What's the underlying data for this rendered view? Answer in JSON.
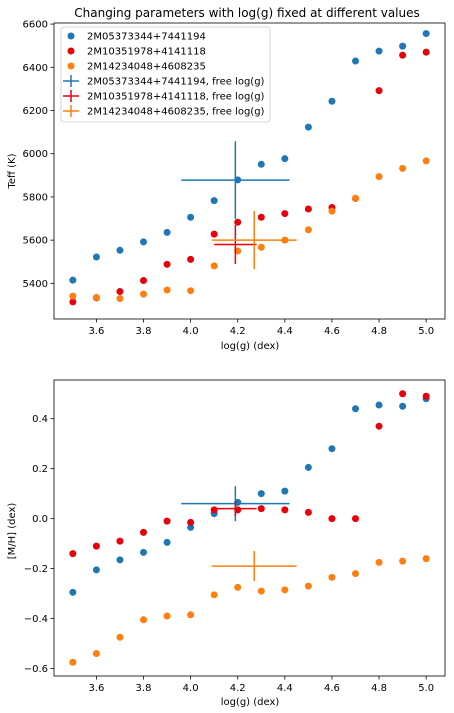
{
  "colors": {
    "blue": "#1f77b4",
    "red": "#e8000b",
    "orange": "#ff7f0e"
  },
  "chart_data": [
    {
      "type": "scatter",
      "title": "Changing parameters with log(g) fixed at different values",
      "xlabel": "log(g) (dex)",
      "ylabel": "Teff (K)",
      "xlim": [
        3.42,
        5.08
      ],
      "ylim": [
        5235,
        6605
      ],
      "xticks": [
        3.6,
        3.8,
        4.0,
        4.2,
        4.4,
        4.6,
        4.8,
        5.0
      ],
      "yticks": [
        5400,
        5600,
        5800,
        6000,
        6200,
        6400,
        6600
      ],
      "xtick_labels": [
        "3.6",
        "3.8",
        "4.0",
        "4.2",
        "4.4",
        "4.6",
        "4.8",
        "5.0"
      ],
      "ytick_labels": [
        "5400",
        "5600",
        "5800",
        "6000",
        "6200",
        "6400",
        "6600"
      ],
      "legend_position": "top-left",
      "series": [
        {
          "name": "2M05373344+7441194",
          "color": "blue",
          "x": [
            3.5,
            3.6,
            3.7,
            3.8,
            3.9,
            4.0,
            4.1,
            4.2,
            4.3,
            4.4,
            4.5,
            4.6,
            4.7,
            4.8,
            4.9,
            5.0
          ],
          "y": [
            5415,
            5522,
            5553,
            5592,
            5636,
            5706,
            5783,
            5879,
            5951,
            5977,
            6123,
            6243,
            6429,
            6475,
            6498,
            6556
          ]
        },
        {
          "name": "2M10351978+4141118",
          "color": "red",
          "x": [
            3.5,
            3.6,
            3.7,
            3.8,
            3.9,
            4.0,
            4.1,
            4.2,
            4.3,
            4.4,
            4.5,
            4.6,
            4.7,
            4.8,
            4.9,
            5.0
          ],
          "y": [
            5314,
            5333,
            5362,
            5413,
            5488,
            5511,
            5628,
            5683,
            5706,
            5723,
            5744,
            5751,
            5793,
            6292,
            6456,
            6470
          ]
        },
        {
          "name": "2M14234048+4608235",
          "color": "orange",
          "x": [
            3.5,
            3.6,
            3.7,
            3.8,
            3.9,
            4.0,
            4.1,
            4.2,
            4.3,
            4.4,
            4.5,
            4.6,
            4.7,
            4.8,
            4.9,
            5.0
          ],
          "y": [
            5341,
            5335,
            5330,
            5350,
            5369,
            5366,
            5481,
            5550,
            5567,
            5600,
            5648,
            5734,
            5794,
            5894,
            5932,
            5967
          ]
        }
      ],
      "errorbars": [
        {
          "name": "2M05373344+7441194, free log(g)",
          "color": "blue",
          "x": 4.19,
          "y": 5878,
          "xerr": 0.23,
          "yerr": 180
        },
        {
          "name": "2M10351978+4141118, free log(g)",
          "color": "red",
          "x": 4.19,
          "y": 5580,
          "xerr": 0.09,
          "yerr": 90
        },
        {
          "name": "2M14234048+4608235, free log(g)",
          "color": "orange",
          "x": 4.27,
          "y": 5600,
          "xerr": 0.18,
          "yerr": 135
        }
      ]
    },
    {
      "type": "scatter",
      "title": "",
      "xlabel": "log(g) (dex)",
      "ylabel": "[M/H] (dex)",
      "xlim": [
        3.42,
        5.08
      ],
      "ylim": [
        -0.63,
        0.555
      ],
      "xticks": [
        3.6,
        3.8,
        4.0,
        4.2,
        4.4,
        4.6,
        4.8,
        5.0
      ],
      "yticks": [
        -0.6,
        -0.4,
        -0.2,
        0.0,
        0.2,
        0.4
      ],
      "xtick_labels": [
        "3.6",
        "3.8",
        "4.0",
        "4.2",
        "4.4",
        "4.6",
        "4.8",
        "5.0"
      ],
      "ytick_labels": [
        "−0.6",
        "−0.4",
        "−0.2",
        "0.0",
        "0.2",
        "0.4"
      ],
      "series": [
        {
          "name": "2M05373344+7441194",
          "color": "blue",
          "x": [
            3.5,
            3.6,
            3.7,
            3.8,
            3.9,
            4.0,
            4.1,
            4.2,
            4.3,
            4.4,
            4.5,
            4.6,
            4.7,
            4.8,
            4.9,
            5.0
          ],
          "y": [
            -0.295,
            -0.205,
            -0.165,
            -0.135,
            -0.095,
            -0.035,
            0.02,
            0.065,
            0.1,
            0.11,
            0.205,
            0.28,
            0.44,
            0.455,
            0.45,
            0.48
          ]
        },
        {
          "name": "2M10351978+4141118",
          "color": "red",
          "x": [
            3.5,
            3.6,
            3.7,
            3.8,
            3.9,
            4.0,
            4.1,
            4.2,
            4.3,
            4.4,
            4.5,
            4.6,
            4.7,
            4.8,
            4.9,
            5.0
          ],
          "y": [
            -0.14,
            -0.11,
            -0.09,
            -0.055,
            -0.01,
            -0.015,
            0.035,
            0.035,
            0.04,
            0.035,
            0.025,
            0.0,
            0.0,
            0.37,
            0.5,
            0.49
          ]
        },
        {
          "name": "2M14234048+4608235",
          "color": "orange",
          "x": [
            3.5,
            3.6,
            3.7,
            3.8,
            3.9,
            4.0,
            4.1,
            4.2,
            4.3,
            4.4,
            4.5,
            4.6,
            4.7,
            4.8,
            4.9,
            5.0
          ],
          "y": [
            -0.575,
            -0.54,
            -0.475,
            -0.405,
            -0.39,
            -0.385,
            -0.305,
            -0.275,
            -0.29,
            -0.285,
            -0.27,
            -0.235,
            -0.22,
            -0.175,
            -0.17,
            -0.16
          ]
        }
      ],
      "errorbars": [
        {
          "name": "2M05373344+7441194, free log(g)",
          "color": "blue",
          "x": 4.19,
          "y": 0.06,
          "xerr": 0.23,
          "yerr": 0.07
        },
        {
          "name": "2M10351978+4141118, free log(g)",
          "color": "red",
          "x": 4.19,
          "y": 0.04,
          "xerr": 0.09,
          "yerr": 0.03
        },
        {
          "name": "2M14234048+4608235, free log(g)",
          "color": "orange",
          "x": 4.27,
          "y": -0.19,
          "xerr": 0.18,
          "yerr": 0.06
        }
      ]
    }
  ]
}
